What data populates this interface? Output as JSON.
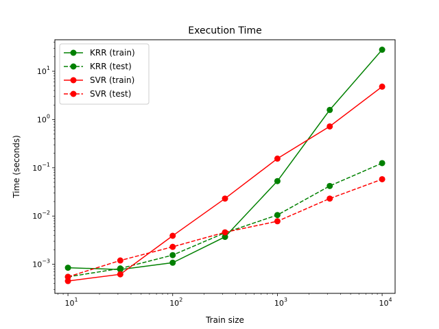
{
  "chart_data": {
    "type": "line",
    "title": "Execution Time",
    "xlabel": "Train size",
    "ylabel": "Time (seconds)",
    "xscale": "log",
    "yscale": "log",
    "xlim": [
      7.5,
      13300
    ],
    "ylim": [
      0.00025,
      45
    ],
    "x_ticks": [
      {
        "value": 10,
        "base": "10",
        "exp": "1"
      },
      {
        "value": 100,
        "base": "10",
        "exp": "2"
      },
      {
        "value": 1000,
        "base": "10",
        "exp": "3"
      },
      {
        "value": 10000,
        "base": "10",
        "exp": "4"
      }
    ],
    "y_ticks": [
      {
        "value": 0.001,
        "base": "10",
        "exp": "−3"
      },
      {
        "value": 0.01,
        "base": "10",
        "exp": "−2"
      },
      {
        "value": 0.1,
        "base": "10",
        "exp": "−1"
      },
      {
        "value": 1,
        "base": "10",
        "exp": "0"
      },
      {
        "value": 10,
        "base": "10",
        "exp": "1"
      }
    ],
    "x": [
      10,
      31.6,
      100,
      316,
      1000,
      3162,
      10000
    ],
    "series": [
      {
        "name": "KRR (train)",
        "color": "#008000",
        "dashed": false,
        "values": [
          0.00085,
          0.00078,
          0.00108,
          0.0037,
          0.053,
          1.58,
          28
        ]
      },
      {
        "name": "KRR (test)",
        "color": "#008000",
        "dashed": true,
        "values": [
          0.00055,
          0.00082,
          0.00155,
          0.0045,
          0.0105,
          0.042,
          0.125
        ]
      },
      {
        "name": "SVR (train)",
        "color": "#ff0000",
        "dashed": false,
        "values": [
          0.00045,
          0.00062,
          0.0039,
          0.023,
          0.155,
          0.72,
          4.8
        ]
      },
      {
        "name": "SVR (test)",
        "color": "#ff0000",
        "dashed": true,
        "values": [
          0.00055,
          0.0012,
          0.0023,
          0.0046,
          0.0078,
          0.023,
          0.058
        ]
      }
    ],
    "legend_position": "top-left",
    "grid": false
  }
}
